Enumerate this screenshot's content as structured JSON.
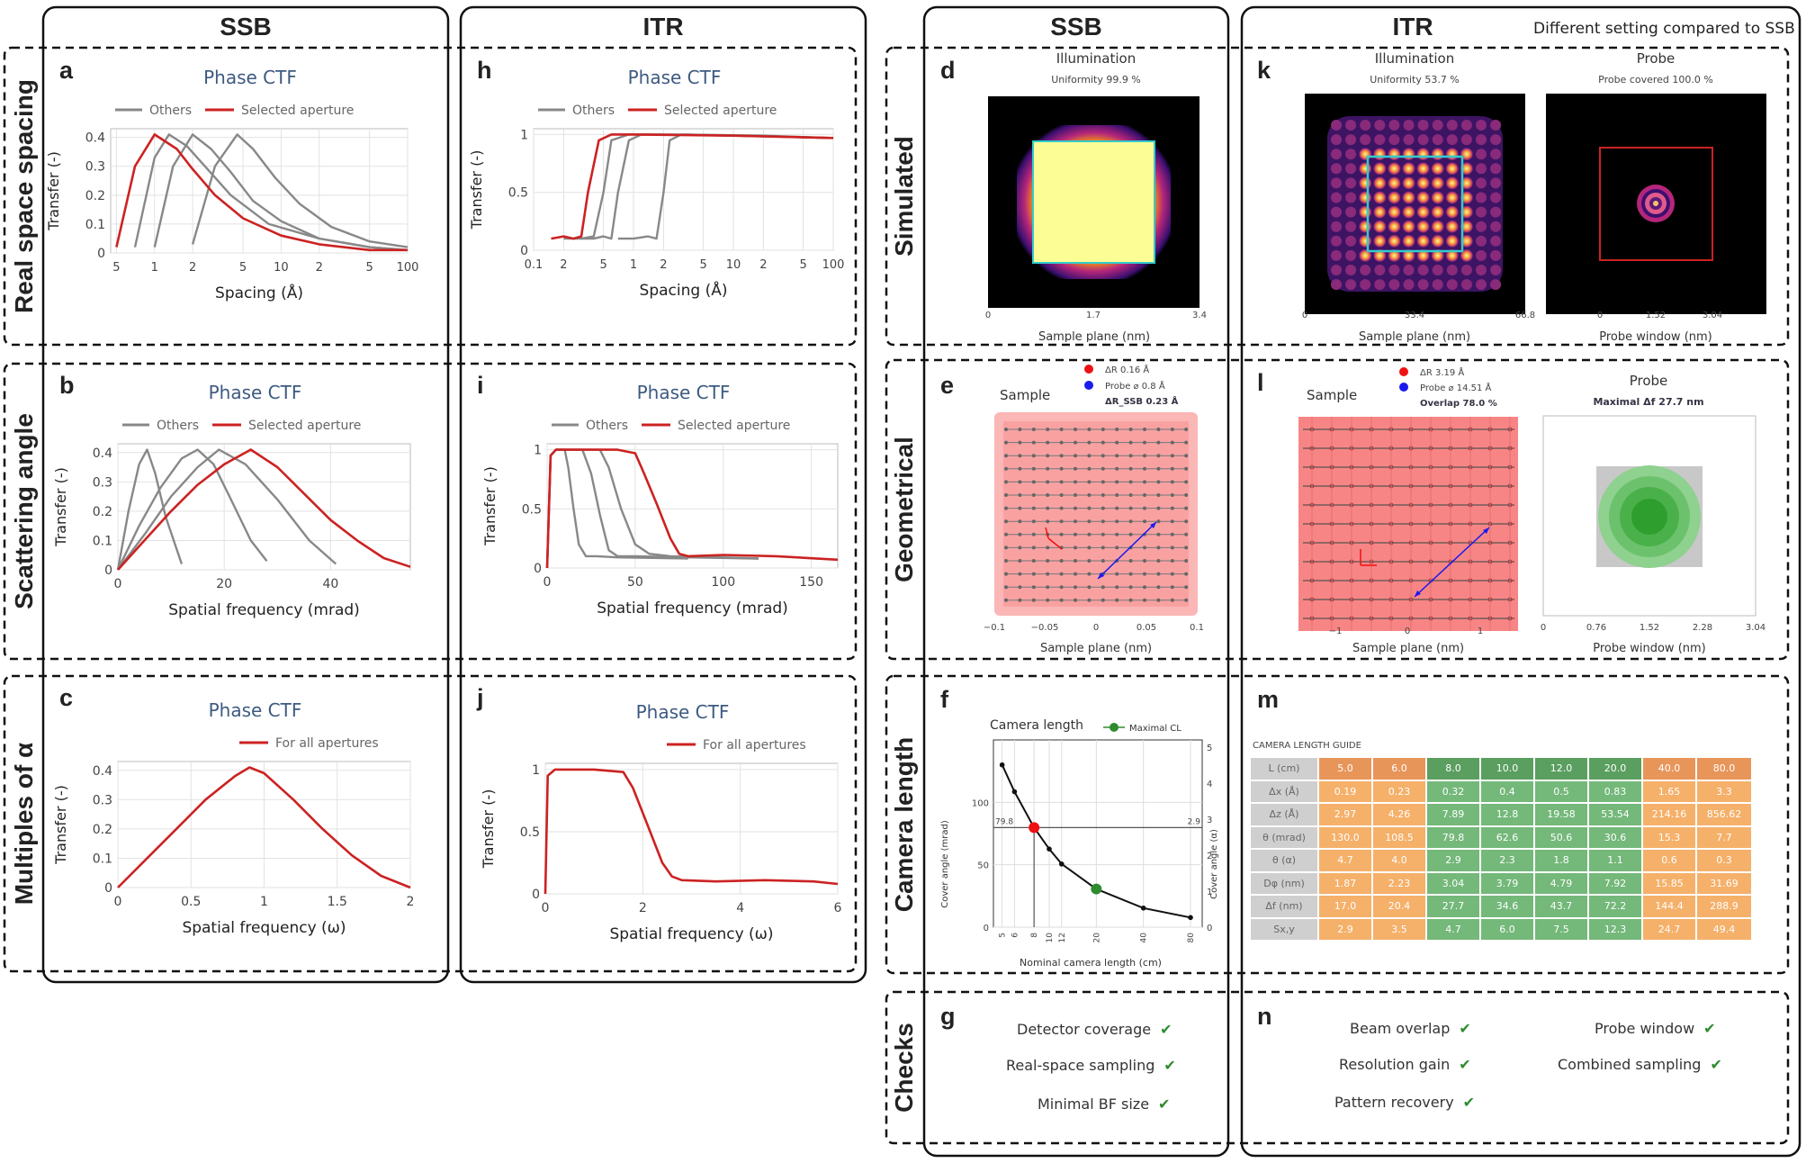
{
  "headers": {
    "ssb": "SSB",
    "itr": "ITR",
    "note": "Different setting compared to SSB"
  },
  "rows": {
    "real": "Real space spacing",
    "scatter": "Scattering angle",
    "multiples": "Multiples of α",
    "simulated": "Simulated",
    "geometrical": "Geometrical",
    "camera": "Camera length",
    "checks": "Checks"
  },
  "letters": {
    "a": "a",
    "b": "b",
    "c": "c",
    "h": "h",
    "i": "i",
    "j": "j",
    "d": "d",
    "k": "k",
    "e": "e",
    "l": "l",
    "f": "f",
    "m": "m",
    "g": "g",
    "n": "n"
  },
  "chart_data": [
    {
      "id": "a",
      "type": "line",
      "title": "Phase CTF",
      "xlabel": "Spacing (Å)",
      "ylabel": "Transfer (-)",
      "xscale": "log",
      "legend": [
        "Others",
        "Selected aperture"
      ],
      "xticks": [
        "5",
        "1",
        "2",
        "5",
        "10",
        "2",
        "5",
        "100"
      ],
      "yticks": [
        "0",
        "0.1",
        "0.2",
        "0.3",
        "0.4"
      ],
      "series": [
        {
          "name": "Selected aperture",
          "x": [
            0.5,
            0.7,
            1.0,
            1.5,
            2,
            3,
            5,
            10,
            20,
            50,
            100
          ],
          "y": [
            0.02,
            0.3,
            0.41,
            0.36,
            0.29,
            0.2,
            0.12,
            0.06,
            0.03,
            0.01,
            0.01
          ]
        },
        {
          "name": "Others",
          "x": [
            0.7,
            1.0,
            1.3,
            1.8,
            2.5,
            4,
            8,
            20,
            50,
            100
          ],
          "y": [
            0.02,
            0.33,
            0.41,
            0.37,
            0.3,
            0.2,
            0.1,
            0.05,
            0.02,
            0.01
          ]
        },
        {
          "name": "Others",
          "x": [
            1.0,
            1.4,
            2,
            2.8,
            4,
            6,
            10,
            20,
            50,
            100
          ],
          "y": [
            0.02,
            0.3,
            0.41,
            0.36,
            0.28,
            0.18,
            0.11,
            0.05,
            0.02,
            0.01
          ]
        },
        {
          "name": "Others",
          "x": [
            2,
            3,
            4.5,
            6,
            9,
            14,
            25,
            50,
            100
          ],
          "y": [
            0.03,
            0.3,
            0.41,
            0.36,
            0.26,
            0.17,
            0.09,
            0.04,
            0.02
          ]
        }
      ]
    },
    {
      "id": "h",
      "type": "line",
      "title": "Phase CTF",
      "xlabel": "Spacing (Å)",
      "ylabel": "Transfer (-)",
      "xscale": "log",
      "legend": [
        "Others",
        "Selected aperture"
      ],
      "xticks": [
        "0.1",
        "2",
        "5",
        "1",
        "2",
        "5",
        "10",
        "2",
        "5",
        "100"
      ],
      "yticks": [
        "0",
        "0.5",
        "1"
      ],
      "series": [
        {
          "name": "Selected aperture",
          "x": [
            0.15,
            0.2,
            0.25,
            0.3,
            0.35,
            0.45,
            0.6,
            1,
            10,
            100
          ],
          "y": [
            0.1,
            0.12,
            0.1,
            0.12,
            0.5,
            0.95,
            1,
            1,
            0.99,
            0.97
          ]
        },
        {
          "name": "Others",
          "x": [
            0.2,
            0.3,
            0.4,
            0.5,
            0.6,
            0.9,
            2,
            10,
            100
          ],
          "y": [
            0.1,
            0.1,
            0.12,
            0.5,
            0.95,
            1,
            1,
            0.99,
            0.97
          ]
        },
        {
          "name": "Others",
          "x": [
            0.3,
            0.4,
            0.5,
            0.6,
            0.7,
            0.9,
            1.2,
            3,
            20,
            100
          ],
          "y": [
            0.1,
            0.1,
            0.12,
            0.1,
            0.5,
            0.95,
            1,
            1,
            0.99,
            0.97
          ]
        },
        {
          "name": "Others",
          "x": [
            0.7,
            1.0,
            1.4,
            1.7,
            2.0,
            2.3,
            3,
            10,
            100
          ],
          "y": [
            0.1,
            0.1,
            0.12,
            0.1,
            0.5,
            0.95,
            1,
            0.99,
            0.97
          ]
        }
      ]
    },
    {
      "id": "b",
      "type": "line",
      "title": "Phase CTF",
      "xlabel": "Spatial frequency (mrad)",
      "ylabel": "Transfer (-)",
      "legend": [
        "Others",
        "Selected aperture"
      ],
      "xticks": [
        "0",
        "20",
        "40"
      ],
      "yticks": [
        "0",
        "0.1",
        "0.2",
        "0.3",
        "0.4"
      ],
      "series": [
        {
          "name": "Selected aperture",
          "x": [
            0,
            5,
            10,
            15,
            20,
            25,
            30,
            35,
            40,
            45,
            50,
            55
          ],
          "y": [
            0,
            0.1,
            0.2,
            0.29,
            0.36,
            0.41,
            0.35,
            0.26,
            0.17,
            0.1,
            0.04,
            0.01
          ]
        },
        {
          "name": "Others",
          "x": [
            0,
            2,
            4,
            5.5,
            7,
            9,
            12
          ],
          "y": [
            0,
            0.2,
            0.36,
            0.41,
            0.33,
            0.18,
            0.02
          ]
        },
        {
          "name": "Others",
          "x": [
            0,
            4,
            8,
            12,
            15,
            18,
            21,
            25,
            28
          ],
          "y": [
            0,
            0.15,
            0.28,
            0.38,
            0.41,
            0.36,
            0.25,
            0.1,
            0.03
          ]
        },
        {
          "name": "Others",
          "x": [
            0,
            5,
            10,
            15,
            19,
            24,
            30,
            36,
            41
          ],
          "y": [
            0,
            0.12,
            0.25,
            0.35,
            0.41,
            0.36,
            0.24,
            0.1,
            0.02
          ]
        }
      ]
    },
    {
      "id": "i",
      "type": "line",
      "title": "Phase CTF",
      "xlabel": "Spatial frequency (mrad)",
      "ylabel": "Transfer (-)",
      "legend": [
        "Others",
        "Selected aperture"
      ],
      "xticks": [
        "0",
        "50",
        "100",
        "150"
      ],
      "yticks": [
        "0",
        "0.5",
        "1"
      ],
      "series": [
        {
          "name": "Selected aperture",
          "x": [
            0,
            2,
            5,
            20,
            40,
            50,
            55,
            62,
            70,
            75,
            80,
            100,
            130,
            165
          ],
          "y": [
            0,
            0.95,
            1,
            1,
            1,
            0.97,
            0.8,
            0.55,
            0.25,
            0.12,
            0.1,
            0.11,
            0.1,
            0.07
          ]
        },
        {
          "name": "Others",
          "x": [
            0,
            2,
            5,
            10,
            12,
            15,
            18,
            22,
            28,
            40,
            80
          ],
          "y": [
            0,
            0.95,
            1,
            1,
            0.85,
            0.5,
            0.2,
            0.1,
            0.1,
            0.09,
            0.08
          ]
        },
        {
          "name": "Others",
          "x": [
            0,
            2,
            5,
            20,
            25,
            30,
            35,
            40,
            50,
            80,
            120
          ],
          "y": [
            0,
            0.95,
            1,
            1,
            0.8,
            0.45,
            0.15,
            0.1,
            0.1,
            0.09,
            0.08
          ]
        },
        {
          "name": "Others",
          "x": [
            0,
            2,
            5,
            30,
            35,
            42,
            50,
            58,
            70,
            100,
            120
          ],
          "y": [
            0,
            0.95,
            1,
            1,
            0.85,
            0.5,
            0.2,
            0.12,
            0.1,
            0.09,
            0.08
          ]
        }
      ]
    },
    {
      "id": "c",
      "type": "line",
      "title": "Phase CTF",
      "xlabel": "Spatial frequency (ω)",
      "ylabel": "Transfer (-)",
      "legend": [
        "For all apertures"
      ],
      "xticks": [
        "0",
        "0.5",
        "1",
        "1.5",
        "2"
      ],
      "yticks": [
        "0",
        "0.1",
        "0.2",
        "0.3",
        "0.4"
      ],
      "series": [
        {
          "name": "For all apertures",
          "x": [
            0,
            0.2,
            0.4,
            0.6,
            0.8,
            0.9,
            1.0,
            1.2,
            1.4,
            1.6,
            1.8,
            2.0
          ],
          "y": [
            0,
            0.1,
            0.2,
            0.3,
            0.38,
            0.41,
            0.39,
            0.3,
            0.2,
            0.11,
            0.04,
            0
          ]
        }
      ]
    },
    {
      "id": "j",
      "type": "line",
      "title": "Phase CTF",
      "xlabel": "Spatial frequency (ω)",
      "ylabel": "Transfer (-)",
      "legend": [
        "For all apertures"
      ],
      "xticks": [
        "0",
        "2",
        "4",
        "6"
      ],
      "yticks": [
        "0",
        "0.5",
        "1"
      ],
      "series": [
        {
          "name": "For all apertures",
          "x": [
            0,
            0.05,
            0.2,
            1.0,
            1.6,
            1.8,
            2.1,
            2.4,
            2.6,
            2.8,
            3.5,
            4.5,
            5.5,
            6
          ],
          "y": [
            0,
            0.95,
            1,
            1,
            0.98,
            0.85,
            0.55,
            0.25,
            0.14,
            0.11,
            0.1,
            0.11,
            0.1,
            0.08
          ]
        }
      ]
    }
  ],
  "panel_d": {
    "title": "Illumination",
    "subtitle": "Uniformity 99.9 %",
    "xlabel": "Sample plane (nm)",
    "xticks": [
      "0",
      "1.7",
      "3.4"
    ]
  },
  "panel_k1": {
    "title": "Illumination",
    "subtitle": "Uniformity 53.7 %",
    "xlabel": "Sample plane (nm)",
    "xticks": [
      "0",
      "33.4",
      "66.8"
    ]
  },
  "panel_k2": {
    "title": "Probe",
    "subtitle": "Probe covered 100.0 %",
    "xlabel": "Probe window (nm)",
    "xticks": [
      "0",
      "1.52",
      "3.04"
    ]
  },
  "panel_e": {
    "title": "Sample",
    "legend_red": "ΔR 0.16 Å",
    "legend_blue": "Probe ⌀ 0.8 Å",
    "note": "ΔR_SSB 0.23 Å",
    "xlabel": "Sample plane (nm)",
    "xticks": [
      "−0.1",
      "−0.05",
      "0",
      "0.05",
      "0.1"
    ]
  },
  "panel_l1": {
    "title": "Sample",
    "legend_red": "ΔR 3.19 Å",
    "legend_blue": "Probe ⌀ 14.51 Å",
    "note": "Overlap 78.0 %",
    "xlabel": "Sample plane (nm)",
    "xticks": [
      "−1",
      "0",
      "1"
    ]
  },
  "panel_l2": {
    "title": "Probe",
    "subtitle": "Maximal Δf 27.7 nm",
    "xlabel": "Probe window (nm)",
    "xticks": [
      "0",
      "0.76",
      "1.52",
      "2.28",
      "3.04"
    ]
  },
  "panel_f": {
    "title": "Camera length",
    "legend": "Maximal CL",
    "xlabel": "Nominal camera length (cm)",
    "ylabel_left": "Cover angle (mrad)",
    "ylabel_right": "Cover angle (α)",
    "xticks": [
      "5",
      "6",
      "8",
      "10",
      "12",
      "20",
      "40",
      "80"
    ],
    "yticks_left": [
      "0",
      "50",
      "100"
    ],
    "yticks_right": [
      "0",
      "1",
      "2",
      "3",
      "4",
      "5"
    ],
    "ref_left": "79.8",
    "ref_right": "2.9",
    "points": [
      {
        "x": 5,
        "y": 130.0
      },
      {
        "x": 6,
        "y": 108.5
      },
      {
        "x": 8,
        "y": 79.8
      },
      {
        "x": 10,
        "y": 62.6
      },
      {
        "x": 12,
        "y": 50.6
      },
      {
        "x": 20,
        "y": 30.6
      },
      {
        "x": 40,
        "y": 15.3
      },
      {
        "x": 80,
        "y": 7.7
      }
    ]
  },
  "panel_m": {
    "title": "CAMERA LENGTH GUIDE",
    "header": [
      "L (cm)",
      "5.0",
      "6.0",
      "8.0",
      "10.0",
      "12.0",
      "20.0",
      "40.0",
      "80.0"
    ],
    "rows": [
      [
        "Δx (Å)",
        "0.19",
        "0.23",
        "0.32",
        "0.4",
        "0.5",
        "0.83",
        "1.65",
        "3.3"
      ],
      [
        "Δz (Å)",
        "2.97",
        "4.26",
        "7.89",
        "12.8",
        "19.58",
        "53.54",
        "214.16",
        "856.62"
      ],
      [
        "θ (mrad)",
        "130.0",
        "108.5",
        "79.8",
        "62.6",
        "50.6",
        "30.6",
        "15.3",
        "7.7"
      ],
      [
        "θ (α)",
        "4.7",
        "4.0",
        "2.9",
        "2.3",
        "1.8",
        "1.1",
        "0.6",
        "0.3"
      ],
      [
        "Dφ (nm)",
        "1.87",
        "2.23",
        "3.04",
        "3.79",
        "4.79",
        "7.92",
        "15.85",
        "31.69"
      ],
      [
        "Δf (nm)",
        "17.0",
        "20.4",
        "27.7",
        "34.6",
        "43.7",
        "72.2",
        "144.4",
        "288.9"
      ],
      [
        "Sx,y",
        "2.9",
        "3.5",
        "4.7",
        "6.0",
        "7.5",
        "12.3",
        "24.7",
        "49.4"
      ]
    ],
    "colors": {
      "orange": "#f5b06a",
      "green": "#74b87a",
      "label": "#cfcfcf"
    }
  },
  "panel_g": {
    "items": [
      "Detector coverage",
      "Real-space sampling",
      "Minimal BF size"
    ]
  },
  "panel_n": {
    "items_left": [
      "Beam overlap",
      "Resolution gain",
      "Pattern recovery"
    ],
    "items_right": [
      "Probe window",
      "Combined sampling"
    ]
  },
  "colors": {
    "red": "#cc2222",
    "gray": "#888888",
    "blue": "#1a1aee",
    "green": "#2e8b2e"
  }
}
